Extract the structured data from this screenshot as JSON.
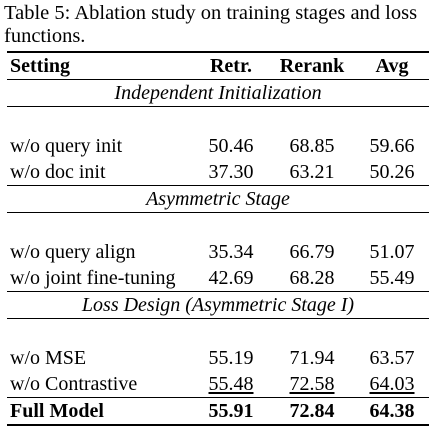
{
  "caption": {
    "label": "Table 5:",
    "text": "Ablation study on training stages and loss functions."
  },
  "table": {
    "headers": [
      "Setting",
      "Retr.",
      "Rerank",
      "Avg"
    ],
    "sections": [
      {
        "title": "Independent Initialization",
        "rows": [
          {
            "setting": "w/o query init",
            "retr": "50.46",
            "rerank": "68.85",
            "avg": "59.66"
          },
          {
            "setting": "w/o doc init",
            "retr": "37.30",
            "rerank": "63.21",
            "avg": "50.26"
          }
        ]
      },
      {
        "title": "Asymmetric Stage",
        "rows": [
          {
            "setting": "w/o query align",
            "retr": "35.34",
            "rerank": "66.79",
            "avg": "51.07"
          },
          {
            "setting": "w/o joint fine-tuning",
            "retr": "42.69",
            "rerank": "68.28",
            "avg": "55.49"
          }
        ]
      },
      {
        "title": "Loss Design (Asymmetric Stage I)",
        "rows": [
          {
            "setting": "w/o MSE",
            "retr": "55.19",
            "rerank": "71.94",
            "avg": "63.57"
          },
          {
            "setting": "w/o Contrastive",
            "retr": "55.48",
            "rerank": "72.58",
            "avg": "64.03"
          }
        ]
      }
    ],
    "full": {
      "setting": "Full Model",
      "retr": "55.91",
      "rerank": "72.84",
      "avg": "64.38"
    }
  }
}
